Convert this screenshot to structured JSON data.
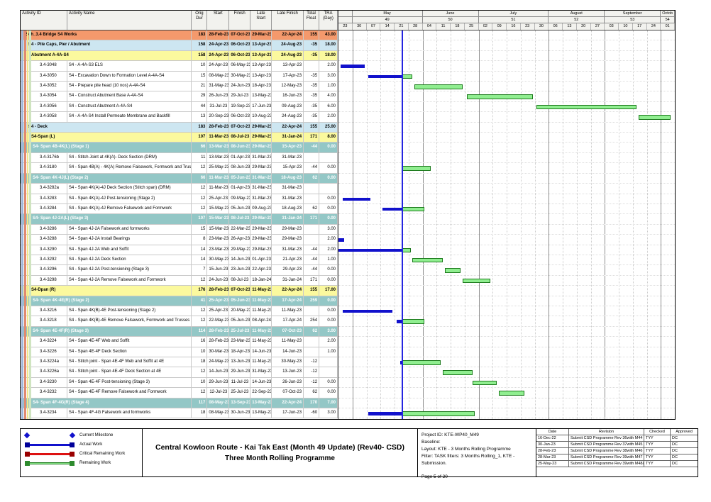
{
  "title_block": {
    "line1": "Central Kowloon Route - Kai Tak East (Month 49 Update) (Rev40- CSD)",
    "line2": "Three Month Rolling Programme"
  },
  "info": {
    "project_id": "Project ID: KTE-WP40_M49",
    "baseline": "Baseline:",
    "layout": "Layout: KTE - 3 Months Rolling Programme",
    "filter": "Filter: TASK filters: 3 Months Rolling_1, KTE - Submission.",
    "page": "Page 5 of 20"
  },
  "legend": {
    "items": [
      {
        "label": "Current Milestone",
        "kind": "milestone",
        "color": "#1111CC"
      },
      {
        "label": "Actual Work",
        "kind": "bar",
        "color": "#1111CC",
        "cap": "#000099"
      },
      {
        "label": "Critical Remaining Work",
        "kind": "bar",
        "color": "#DD1111",
        "cap": "#990000"
      },
      {
        "label": "Remaining Work",
        "kind": "bar",
        "color": "#90EE90",
        "cap": "#2E8B2E"
      }
    ]
  },
  "revisions": {
    "headers": [
      "Date",
      "Revision",
      "Checked",
      "Approved"
    ],
    "rows": [
      [
        "16-Dec-22",
        "Submit CSD Programme Rev 36with M44 Mon...",
        "TYY",
        "DC"
      ],
      [
        "30-Jan-23",
        "Submit CSD Programme Rev 37with M45 Mon...",
        "TYY",
        "DC"
      ],
      [
        "28-Feb-23",
        "Submit CSD Programme Rev 38with M46 Mon...",
        "TYY",
        "DC"
      ],
      [
        "28-Mar-23",
        "Submit CSD Programme Rev 39with M47 Mon...",
        "TYY",
        "DC"
      ],
      [
        "25-May-23",
        "Submit CSD Programme Rev 39with M48&49 ...",
        "TYY",
        "DC"
      ]
    ]
  },
  "colors": {
    "l1": "#F4996C",
    "l2": "#CDE6F1",
    "l3": "#FBF99E",
    "l4": "#93C7C6",
    "actual": "#1111CC",
    "remaining": "#90EE90",
    "remaining_border": "#1D7A1D",
    "data_date": "#2424E0",
    "stripes": [
      "#9FB6D9",
      "#E08A70",
      "#EEE88A",
      "#CFE4C0"
    ]
  },
  "chart_data": {
    "type": "table",
    "title": "Sch_3.4 Bridge S4 Works - Three Month Rolling Programme (Gantt)",
    "columns": [
      "Activity ID",
      "Activity Name",
      "Orig Dur",
      "Start",
      "Finish",
      "Late Start",
      "Late Finish",
      "Total Float",
      "TRA (Day)"
    ],
    "timeline": {
      "start": "2023-04-23",
      "end": "2023-10-08",
      "data_date": "2023-05-25",
      "months": [
        {
          "label": "",
          "num": "",
          "weeks": [
            "23"
          ]
        },
        {
          "label": "May",
          "num": "49",
          "weeks": [
            "30",
            "07",
            "14",
            "21",
            "28"
          ]
        },
        {
          "label": "June",
          "num": "50",
          "weeks": [
            "04",
            "11",
            "18",
            "25"
          ]
        },
        {
          "label": "July",
          "num": "51",
          "weeks": [
            "02",
            "09",
            "16",
            "23",
            "30"
          ]
        },
        {
          "label": "August",
          "num": "52",
          "weeks": [
            "06",
            "13",
            "20",
            "27"
          ]
        },
        {
          "label": "September",
          "num": "53",
          "weeks": [
            "03",
            "10",
            "17",
            "24"
          ]
        },
        {
          "label": "Octob",
          "num": "54",
          "weeks": [
            "01"
          ]
        }
      ]
    },
    "rows": [
      {
        "t": "l1",
        "name": "Sch_3.4 Bridge S4 Works",
        "od": "183",
        "s": "28-Feb-23 A",
        "f": "07-Oct-23",
        "ls": "29-Mar-23",
        "lf": "22-Apr-24",
        "tf": "155",
        "tra": "43.00",
        "bars": []
      },
      {
        "t": "l2",
        "name": "S4 - Pile Caps, Pier / Abutment",
        "od": "158",
        "s": "24-Apr-23 A",
        "f": "06-Oct-23",
        "ls": "13-Apr-23",
        "lf": "24-Aug-23",
        "tf": "-35",
        "tra": "18.00",
        "bars": []
      },
      {
        "t": "l3",
        "name": "Abutment A-4A-S4",
        "od": "158",
        "s": "24-Apr-23 A",
        "f": "06-Oct-23",
        "ls": "13-Apr-23",
        "lf": "24-Aug-23",
        "tf": "-35",
        "tra": "18.00",
        "bars": []
      },
      {
        "t": "task",
        "id": "3.4-3048",
        "name": "S4 - A-4A-S3 ELS",
        "od": "10",
        "s": "24-Apr-23 A",
        "f": "06-May-23 A",
        "ls": "13-Apr-23",
        "lf": "13-Apr-23",
        "tf": "",
        "tra": "2.00",
        "bars": [
          {
            "k": "a",
            "s": "2023-04-24",
            "e": "2023-05-06"
          }
        ]
      },
      {
        "t": "task",
        "id": "3.4-3050",
        "name": "S4 - Excavation Down to Formation Level A-4A-S4",
        "od": "15",
        "s": "08-May-23 A",
        "f": "30-May-23",
        "ls": "13-Apr-23",
        "lf": "17-Apr-23",
        "tf": "-35",
        "tra": "3.00",
        "bars": [
          {
            "k": "a",
            "s": "2023-05-08",
            "e": "DD"
          },
          {
            "k": "r",
            "s": "DD",
            "e": "2023-05-30"
          }
        ]
      },
      {
        "t": "task",
        "id": "3.4-3052",
        "name": "S4 - Prepare pile head (10 nos) A-4A-S4",
        "od": "21",
        "s": "31-May-23",
        "f": "24-Jun-23",
        "ls": "18-Apr-23",
        "lf": "12-May-23",
        "tf": "-35",
        "tra": "1.00",
        "bars": [
          {
            "k": "r",
            "s": "2023-05-31",
            "e": "2023-06-24"
          }
        ]
      },
      {
        "t": "task",
        "id": "3.4-3054",
        "name": "S4 - Construct Abutment Base A-4A-S4",
        "od": "29",
        "s": "26-Jun-23",
        "f": "29-Jul-23",
        "ls": "13-May-23",
        "lf": "16-Jun-23",
        "tf": "-35",
        "tra": "4.00",
        "bars": [
          {
            "k": "r",
            "s": "2023-06-26",
            "e": "2023-07-29"
          }
        ]
      },
      {
        "t": "task",
        "id": "3.4-3056",
        "name": "S4 - Construct Abutment  A-4A-S4",
        "od": "44",
        "s": "31-Jul-23",
        "f": "19-Sep-23",
        "ls": "17-Jun-23",
        "lf": "09-Aug-23",
        "tf": "-35",
        "tra": "6.00",
        "bars": [
          {
            "k": "r",
            "s": "2023-07-31",
            "e": "2023-09-19"
          }
        ]
      },
      {
        "t": "task",
        "id": "3.4-3058",
        "name": "S4 - A-4A-S4 Install Permeate Membrane and Backfill",
        "od": "13",
        "s": "20-Sep-23",
        "f": "06-Oct-23",
        "ls": "10-Aug-23",
        "lf": "24-Aug-23",
        "tf": "-35",
        "tra": "2.00",
        "bars": [
          {
            "k": "r",
            "s": "2023-09-20",
            "e": "2023-10-06"
          }
        ]
      },
      {
        "t": "l2",
        "name": "S4 - Deck",
        "od": "183",
        "s": "28-Feb-23 A",
        "f": "07-Oct-23",
        "ls": "29-Mar-23",
        "lf": "22-Apr-24",
        "tf": "155",
        "tra": "25.00",
        "bars": []
      },
      {
        "t": "l3",
        "name": "S4-Span (L)",
        "od": "107",
        "s": "11-Mar-23 A",
        "f": "08-Jul-23",
        "ls": "29-Mar-23",
        "lf": "31-Jan-24",
        "tf": "171",
        "tra": "8.00",
        "bars": []
      },
      {
        "t": "l4",
        "name": "S4- Span 4B-4K(L) (Stage 1)",
        "od": "66",
        "s": "13-Mar-23 A",
        "f": "08-Jun-23",
        "ls": "29-Mar-23",
        "lf": "15-Apr-23",
        "tf": "-44",
        "tra": "0.00",
        "bars": []
      },
      {
        "t": "task",
        "id": "3.4-3176b",
        "name": "S4 - Stitch Joint at 4K(A)- Deck Section (DRM)",
        "od": "11",
        "s": "13-Mar-23 A",
        "f": "01-Apr-23 A",
        "ls": "31-Mar-23",
        "lf": "31-Mar-23",
        "tf": "",
        "tra": "",
        "bars": []
      },
      {
        "t": "task",
        "id": "3.4-3180",
        "name": "S4 - Span 4B(A) - 4K(A) Remove Falsework, Formwork and Trusses",
        "od": "12",
        "s": "25-May-23",
        "f": "08-Jun-23",
        "ls": "29-Mar-23",
        "lf": "15-Apr-23",
        "tf": "-44",
        "tra": "0.00",
        "bars": [
          {
            "k": "r",
            "s": "2023-05-25",
            "e": "2023-06-08"
          }
        ]
      },
      {
        "t": "l4",
        "name": "S4- Span 4K-4J(L) (Stage 2)",
        "od": "66",
        "s": "11-Mar-23 A",
        "f": "05-Jun-23",
        "ls": "31-Mar-23",
        "lf": "18-Aug-23",
        "tf": "62",
        "tra": "0.00",
        "bars": []
      },
      {
        "t": "task",
        "id": "3.4-3282a",
        "name": "S4 - Span 4K(A)-4J Deck Section (Stitch span) (DRM)",
        "od": "12",
        "s": "11-Mar-23 A",
        "f": "01-Apr-23 A",
        "ls": "31-Mar-23",
        "lf": "31-Mar-23",
        "tf": "",
        "tra": "",
        "bars": []
      },
      {
        "t": "task",
        "id": "3.4-3283",
        "name": "S4 - Span 4K(A)-4J Post-tensioning (Stage 2)",
        "od": "12",
        "s": "25-Apr-23 A",
        "f": "09-May-23 A",
        "ls": "31-Mar-23",
        "lf": "31-Mar-23",
        "tf": "",
        "tra": "0.00",
        "bars": [
          {
            "k": "a",
            "s": "2023-04-25",
            "e": "2023-05-09"
          }
        ]
      },
      {
        "t": "task",
        "id": "3.4-3284",
        "name": "S4 - Span 4K(A)-4J Remove Falsework and Formwork",
        "od": "12",
        "s": "15-May-23 A",
        "f": "05-Jun-23",
        "ls": "09-Aug-23",
        "lf": "18-Aug-23",
        "tf": "62",
        "tra": "0.00",
        "bars": [
          {
            "k": "a",
            "s": "2023-05-15",
            "e": "DD"
          },
          {
            "k": "r",
            "s": "DD",
            "e": "2023-06-05"
          }
        ]
      },
      {
        "t": "l4",
        "name": "S4- Span 4J-2A(L) (Stage 3)",
        "od": "107",
        "s": "15-Mar-23 A",
        "f": "08-Jul-23",
        "ls": "29-Mar-23",
        "lf": "31-Jan-24",
        "tf": "171",
        "tra": "0.00",
        "bars": []
      },
      {
        "t": "task",
        "id": "3.4-3286",
        "name": "S4 - Span 4J-2A Falsework and formworks",
        "od": "15",
        "s": "15-Mar-23 A",
        "f": "22-Mar-23 A",
        "ls": "29-Mar-23",
        "lf": "29-Mar-23",
        "tf": "",
        "tra": "3.00",
        "bars": []
      },
      {
        "t": "task",
        "id": "3.4-3288",
        "name": "S4 - Span 4J-2A Install Bearings",
        "od": "8",
        "s": "23-Mar-23 A",
        "f": "26-Apr-23 A",
        "ls": "29-Mar-23",
        "lf": "29-Mar-23",
        "tf": "",
        "tra": "2.00",
        "bars": [
          {
            "k": "a",
            "s": "2023-04-23",
            "e": "2023-04-26"
          }
        ]
      },
      {
        "t": "task",
        "id": "3.4-3290",
        "name": "S4 - Span 4J-2A Web and Soffit",
        "od": "14",
        "s": "23-Mar-23 A",
        "f": "29-May-23",
        "ls": "29-Mar-23",
        "lf": "31-Mar-23",
        "tf": "-44",
        "tra": "2.00",
        "bars": [
          {
            "k": "a",
            "s": "2023-04-23",
            "e": "DD"
          },
          {
            "k": "r",
            "s": "DD",
            "e": "2023-05-29"
          }
        ]
      },
      {
        "t": "task",
        "id": "3.4-3292",
        "name": "S4 - Span 4J-2A Deck Section",
        "od": "14",
        "s": "30-May-23",
        "f": "14-Jun-23",
        "ls": "01-Apr-23",
        "lf": "21-Apr-23",
        "tf": "-44",
        "tra": "1.00",
        "bars": [
          {
            "k": "r",
            "s": "2023-05-30",
            "e": "2023-06-14"
          }
        ]
      },
      {
        "t": "task",
        "id": "3.4-3296",
        "name": "S4 - Span 4J-2A Post-tensioning (Stage 3)",
        "od": "7",
        "s": "15-Jun-23",
        "f": "23-Jun-23",
        "ls": "22-Apr-23",
        "lf": "29-Apr-23",
        "tf": "-44",
        "tra": "0.00",
        "bars": [
          {
            "k": "r",
            "s": "2023-06-15",
            "e": "2023-06-23"
          }
        ]
      },
      {
        "t": "task",
        "id": "3.4-3298",
        "name": "S4 - Span 4J-2A Remove Falsework and Formwork",
        "od": "12",
        "s": "24-Jun-23",
        "f": "08-Jul-23",
        "ls": "18-Jan-24",
        "lf": "31-Jan-24",
        "tf": "171",
        "tra": "0.00",
        "bars": [
          {
            "k": "r",
            "s": "2023-06-24",
            "e": "2023-07-08"
          }
        ]
      },
      {
        "t": "l3",
        "name": "S4-Dpan (R)",
        "od": "176",
        "s": "28-Feb-23 A",
        "f": "07-Oct-23",
        "ls": "11-May-23",
        "lf": "22-Apr-24",
        "tf": "155",
        "tra": "17.00",
        "bars": []
      },
      {
        "t": "l4",
        "name": "S4- Span 4K-4E(R) (Stage 2)",
        "od": "41",
        "s": "25-Apr-23 A",
        "f": "05-Jun-23",
        "ls": "11-May-23",
        "lf": "17-Apr-24",
        "tf": "259",
        "tra": "0.00",
        "bars": []
      },
      {
        "t": "task",
        "id": "3.4-3216",
        "name": "S4 - Span 4K(B)-4E Post-tensioning (Stage 2)",
        "od": "12",
        "s": "25-Apr-23 A",
        "f": "20-May-23 A",
        "ls": "11-May-23",
        "lf": "11-May-23",
        "tf": "",
        "tra": "0.00",
        "bars": [
          {
            "k": "a",
            "s": "2023-04-25",
            "e": "2023-05-20"
          }
        ]
      },
      {
        "t": "task",
        "id": "3.4-3218",
        "name": "S4 - Span 4K(B)-4E Remove Falsework, Formwork and Trusses",
        "od": "12",
        "s": "22-May-23 A",
        "f": "05-Jun-23",
        "ls": "08-Apr-24",
        "lf": "17-Apr-24",
        "tf": "254",
        "tra": "0.00",
        "bars": [
          {
            "k": "a",
            "s": "2023-05-22",
            "e": "DD"
          },
          {
            "k": "r",
            "s": "DD",
            "e": "2023-06-05"
          }
        ]
      },
      {
        "t": "l4",
        "name": "S4- Span 4E-4F(R) (Stage 3)",
        "od": "114",
        "s": "28-Feb-23 A",
        "f": "25-Jul-23",
        "ls": "11-May-23",
        "lf": "07-Oct-23",
        "tf": "62",
        "tra": "3.00",
        "bars": []
      },
      {
        "t": "task",
        "id": "3.4-3224",
        "name": "S4 - Span 4E-4F Web and Soffit",
        "od": "16",
        "s": "28-Feb-23 A",
        "f": "23-Mar-23 A",
        "ls": "11-May-23",
        "lf": "11-May-23",
        "tf": "",
        "tra": "2.00",
        "bars": []
      },
      {
        "t": "task",
        "id": "3.4-3226",
        "name": "S4 - Span 4E-4F Deck Section",
        "od": "10",
        "s": "30-Mar-23 A",
        "f": "18-Apr-23 A",
        "ls": "14-Jun-23",
        "lf": "14-Jun-23",
        "tf": "",
        "tra": "1.00",
        "bars": []
      },
      {
        "t": "task",
        "id": "3.4-3224a",
        "name": "S4 - Stitch joint - Span 4E-4F Web and Soffit at 4E",
        "od": "18",
        "s": "24-May-23 A",
        "f": "13-Jun-23",
        "ls": "11-May-23",
        "lf": "30-May-23",
        "tf": "-12",
        "tra": "",
        "bars": [
          {
            "k": "a",
            "s": "2023-05-24",
            "e": "DD"
          },
          {
            "k": "r",
            "s": "DD",
            "e": "2023-06-13"
          }
        ]
      },
      {
        "t": "task",
        "id": "3.4-3226a",
        "name": "S4 - Stitch joint - Span 4E-4F  Deck Section at 4E",
        "od": "12",
        "s": "14-Jun-23",
        "f": "29-Jun-23",
        "ls": "31-May-23",
        "lf": "13-Jun-23",
        "tf": "-12",
        "tra": "",
        "bars": [
          {
            "k": "r",
            "s": "2023-06-14",
            "e": "2023-06-29"
          }
        ]
      },
      {
        "t": "task",
        "id": "3.4-3230",
        "name": "S4 - Span 4E-4F Post-tensioning (Stage 3)",
        "od": "10",
        "s": "29-Jun-23",
        "f": "11-Jul-23",
        "ls": "14-Jun-23",
        "lf": "26-Jun-23",
        "tf": "-12",
        "tra": "0.00",
        "bars": [
          {
            "k": "r",
            "s": "2023-06-29",
            "e": "2023-07-11"
          }
        ]
      },
      {
        "t": "task",
        "id": "3.4-3232",
        "name": "S4 - Span 4E-4F Remove Falsework and Formwork",
        "od": "12",
        "s": "12-Jul-23",
        "f": "25-Jul-23",
        "ls": "22-Sep-23",
        "lf": "07-Oct-23",
        "tf": "62",
        "tra": "0.00",
        "bars": [
          {
            "k": "r",
            "s": "2023-07-12",
            "e": "2023-07-25"
          }
        ]
      },
      {
        "t": "l4",
        "name": "S4- Span 4F-4G(R) (Stage 4)",
        "od": "117",
        "s": "08-May-23 A",
        "f": "13-Sep-23",
        "ls": "13-May-23",
        "lf": "22-Apr-24",
        "tf": "170",
        "tra": "7.00",
        "bars": []
      },
      {
        "t": "task",
        "id": "3.4-3234",
        "name": "S4 - Span 4F-4G Falsework and formworks",
        "od": "18",
        "s": "08-May-23 A",
        "f": "30-Jun-23",
        "ls": "13-May-23",
        "lf": "17-Jun-23",
        "tf": "-60",
        "tra": "3.00",
        "bars": [
          {
            "k": "a",
            "s": "2023-05-08",
            "e": "DD"
          },
          {
            "k": "r",
            "s": "DD",
            "e": "2023-06-30"
          }
        ]
      }
    ]
  }
}
